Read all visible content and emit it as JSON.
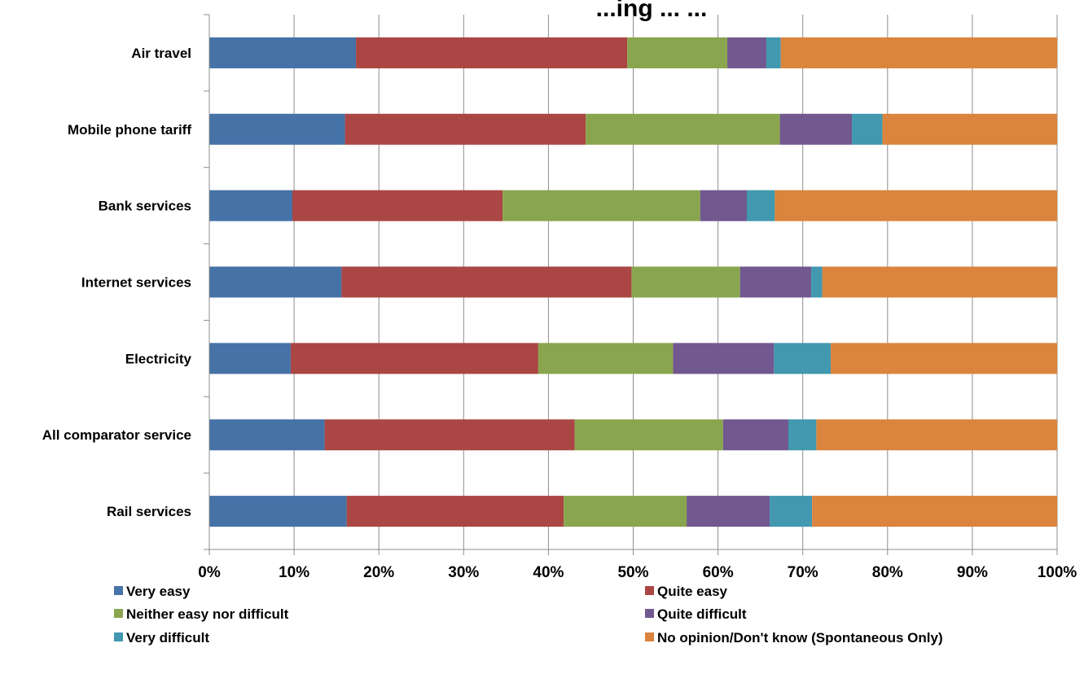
{
  "chart_data": {
    "type": "bar",
    "orientation": "horizontal",
    "stacked": true,
    "title": "...ing ... ...",
    "categories": [
      "Air travel",
      "Mobile phone tariff",
      "Bank services",
      "Internet services",
      "Electricity",
      "All comparator service",
      "Rail services"
    ],
    "x_ticks": [
      "0%",
      "10%",
      "20%",
      "30%",
      "40%",
      "50%",
      "60%",
      "70%",
      "80%",
      "90%",
      "100%"
    ],
    "xlim": [
      0,
      100
    ],
    "grid": "vertical",
    "legend_position": "bottom",
    "series": [
      {
        "name": "Very easy",
        "color": "#4572A7",
        "values": [
          17.3,
          16.0,
          9.8,
          15.6,
          9.6,
          13.6,
          16.2
        ]
      },
      {
        "name": "Quite easy",
        "color": "#AA4643",
        "values": [
          32.0,
          28.4,
          24.8,
          34.2,
          29.2,
          29.5,
          25.6
        ]
      },
      {
        "name": "Neither easy nor difficult",
        "color": "#89A54E",
        "values": [
          11.8,
          22.9,
          23.3,
          12.8,
          15.9,
          17.5,
          14.5
        ]
      },
      {
        "name": "Quite difficult",
        "color": "#71588F",
        "values": [
          4.6,
          8.5,
          5.5,
          8.4,
          11.9,
          7.7,
          9.8
        ]
      },
      {
        "name": "Very difficult",
        "color": "#4198AF",
        "values": [
          1.7,
          3.6,
          3.3,
          1.3,
          6.7,
          3.3,
          5.0
        ]
      },
      {
        "name": "No opinion/Don't know (Spontaneous Only)",
        "color": "#DB843D",
        "values": [
          32.6,
          20.6,
          33.3,
          27.7,
          26.7,
          28.4,
          28.9
        ]
      }
    ]
  }
}
